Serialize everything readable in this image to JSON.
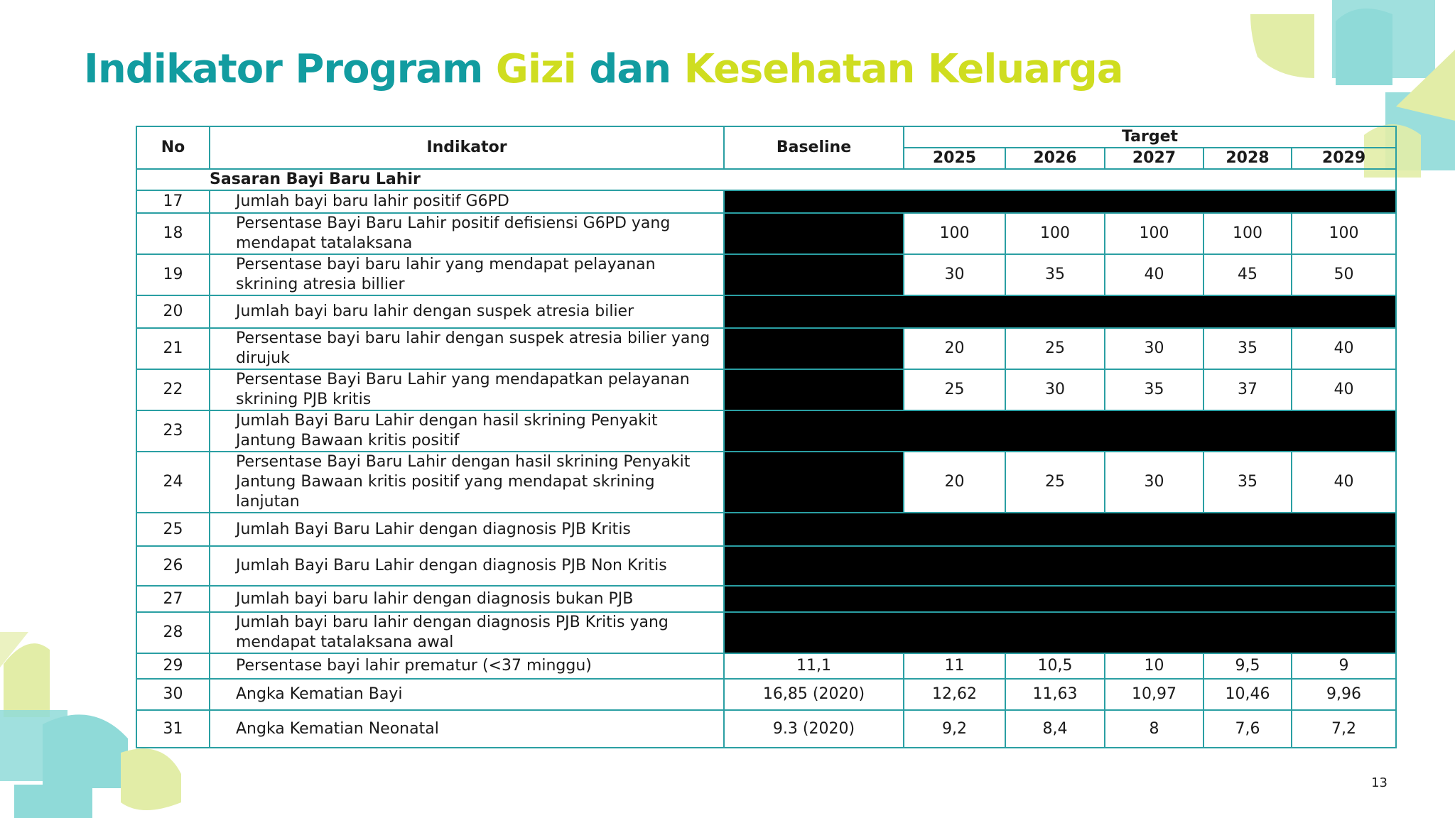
{
  "slide": {
    "title": {
      "part1": "Indikator Program",
      "part2": "Gizi",
      "part3": "dan",
      "part4": "Kesehatan Keluarga"
    },
    "page_number": "13",
    "colors": {
      "teal": "#129CA0",
      "lime": "#CFDD20",
      "border": "#2A9FA3",
      "deco_cyan": "#8FDAD8",
      "deco_yellow": "#E2EDA7"
    }
  },
  "table": {
    "headers": {
      "no": "No",
      "indikator": "Indikator",
      "baseline": "Baseline",
      "target": "Target",
      "years": [
        "2025",
        "2026",
        "2027",
        "2028",
        "2029"
      ]
    },
    "section": "Sasaran Bayi Baru Lahir",
    "rows": [
      {
        "no": "17",
        "indikator": "Jumlah bayi baru lahir positif G6PD",
        "baseline": "",
        "values": []
      },
      {
        "no": "18",
        "indikator": "Persentase Bayi Baru Lahir positif defisiensi G6PD yang mendapat tatalaksana",
        "baseline": "",
        "values": [
          "100",
          "100",
          "100",
          "100",
          "100"
        ]
      },
      {
        "no": "19",
        "indikator": "Persentase bayi baru lahir yang mendapat pelayanan skrining atresia billier",
        "baseline": "",
        "values": [
          "30",
          "35",
          "40",
          "45",
          "50"
        ]
      },
      {
        "no": "20",
        "indikator": "Jumlah bayi baru lahir dengan suspek atresia bilier",
        "baseline": "",
        "values": []
      },
      {
        "no": "21",
        "indikator": "Persentase bayi baru lahir dengan suspek atresia bilier yang dirujuk",
        "baseline": "",
        "values": [
          "20",
          "25",
          "30",
          "35",
          "40"
        ]
      },
      {
        "no": "22",
        "indikator": "Persentase Bayi Baru Lahir yang mendapatkan pelayanan skrining PJB kritis",
        "baseline": "",
        "values": [
          "25",
          "30",
          "35",
          "37",
          "40"
        ]
      },
      {
        "no": "23",
        "indikator": "Jumlah Bayi Baru Lahir dengan hasil skrining Penyakit Jantung Bawaan kritis positif",
        "baseline": "",
        "values": []
      },
      {
        "no": "24",
        "indikator": "Persentase Bayi Baru Lahir dengan hasil skrining Penyakit Jantung Bawaan kritis positif yang mendapat skrining lanjutan",
        "baseline": "",
        "values": [
          "20",
          "25",
          "30",
          "35",
          "40"
        ]
      },
      {
        "no": "25",
        "indikator": "Jumlah Bayi Baru Lahir dengan diagnosis PJB Kritis",
        "baseline": "",
        "values": []
      },
      {
        "no": "26",
        "indikator": "Jumlah Bayi Baru Lahir dengan diagnosis PJB Non Kritis",
        "baseline": "",
        "values": []
      },
      {
        "no": "27",
        "indikator": "Jumlah bayi baru lahir dengan diagnosis bukan PJB",
        "baseline": "",
        "values": []
      },
      {
        "no": "28",
        "indikator": "Jumlah bayi baru lahir dengan diagnosis PJB Kritis yang mendapat tatalaksana awal",
        "baseline": "",
        "values": []
      },
      {
        "no": "29",
        "indikator": "Persentase bayi lahir prematur (<37 minggu)",
        "baseline": "11,1",
        "values": [
          "11",
          "10,5",
          "10",
          "9,5",
          "9"
        ]
      },
      {
        "no": "30",
        "indikator": "Angka Kematian Bayi",
        "baseline": "16,85 (2020)",
        "values": [
          "12,62",
          "11,63",
          "10,97",
          "10,46",
          "9,96"
        ]
      },
      {
        "no": "31",
        "indikator": "Angka Kematian Neonatal",
        "baseline": "9.3 (2020)",
        "values": [
          "9,2",
          "8,4",
          "8",
          "7,6",
          "7,2"
        ]
      }
    ]
  }
}
